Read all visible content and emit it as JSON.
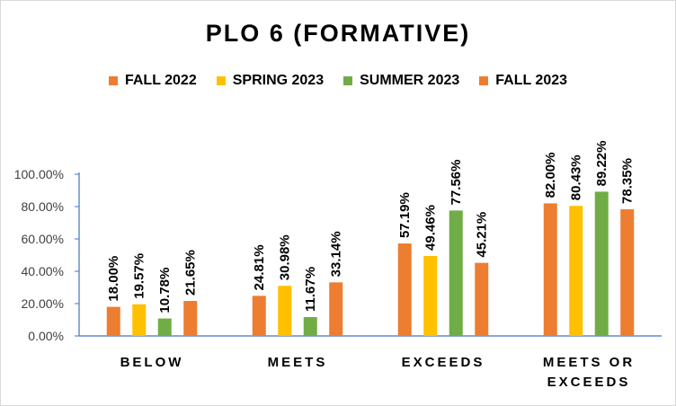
{
  "colors": {
    "series": [
      "#ED7D31",
      "#FFC000",
      "#70AD47",
      "#ED7D31"
    ],
    "axis": "#4472C4",
    "frame": "#d9d9d9"
  },
  "chart_data": {
    "type": "bar",
    "title": "PLO 6 (FORMATIVE)",
    "xlabel": "",
    "ylabel": "",
    "ylim": [
      0,
      100
    ],
    "yticks": [
      "0.00%",
      "20.00%",
      "40.00%",
      "60.00%",
      "80.00%",
      "100.00%"
    ],
    "grid": false,
    "legend_position": "top",
    "categories": [
      "BELOW",
      "MEETS",
      "EXCEEDS",
      "MEETS OR EXCEEDS"
    ],
    "category_lines": [
      [
        "BELOW"
      ],
      [
        "MEETS"
      ],
      [
        "EXCEEDS"
      ],
      [
        "MEETS OR",
        "EXCEEDS"
      ]
    ],
    "series": [
      {
        "name": "FALL 2022",
        "values": [
          18.0,
          24.81,
          57.19,
          82.0
        ],
        "labels": [
          "18.00%",
          "24.81%",
          "57.19%",
          "82.00%"
        ]
      },
      {
        "name": "SPRING 2023",
        "values": [
          19.57,
          30.98,
          49.46,
          80.43
        ],
        "labels": [
          "19.57%",
          "30.98%",
          "49.46%",
          "80.43%"
        ]
      },
      {
        "name": "SUMMER 2023",
        "values": [
          10.78,
          11.67,
          77.56,
          89.22
        ],
        "labels": [
          "10.78%",
          "11.67%",
          "77.56%",
          "89.22%"
        ]
      },
      {
        "name": "FALL 2023",
        "values": [
          21.65,
          33.14,
          45.21,
          78.35
        ],
        "labels": [
          "21.65%",
          "33.14%",
          "45.21%",
          "78.35%"
        ]
      }
    ]
  }
}
